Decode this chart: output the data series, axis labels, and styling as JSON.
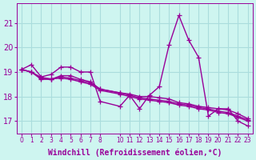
{
  "bg_color": "#cef5f0",
  "grid_color": "#aadddd",
  "line_color": "#990099",
  "xlabel": "Windchill (Refroidissement éolien,°C)",
  "xlabel_color": "#990099",
  "yticks": [
    17,
    18,
    19,
    20,
    21
  ],
  "xticks": [
    0,
    1,
    2,
    3,
    4,
    5,
    6,
    7,
    8,
    10,
    11,
    12,
    13,
    14,
    15,
    16,
    17,
    18,
    19,
    20,
    21,
    22,
    23
  ],
  "ylim": [
    16.5,
    21.8
  ],
  "xlim": [
    -0.5,
    23.5
  ],
  "series": [
    {
      "x": [
        0,
        1,
        2,
        3,
        4,
        5,
        6,
        7,
        8,
        10,
        11,
        12,
        13,
        14,
        15,
        16,
        17,
        18,
        19,
        20,
        21,
        22,
        23
      ],
      "y": [
        19.1,
        19.3,
        18.8,
        18.9,
        19.2,
        19.2,
        19.0,
        19.0,
        17.8,
        17.6,
        18.05,
        17.5,
        18.05,
        18.4,
        20.1,
        21.3,
        20.3,
        19.6,
        17.2,
        17.5,
        17.5,
        17.0,
        16.8
      ]
    },
    {
      "x": [
        0,
        1,
        2,
        3,
        4,
        5,
        6,
        7,
        8,
        10,
        11,
        12,
        13,
        14,
        15,
        16,
        17,
        18,
        19,
        20,
        21,
        22,
        23
      ],
      "y": [
        19.1,
        19.0,
        18.7,
        18.7,
        18.85,
        18.85,
        18.7,
        18.6,
        18.3,
        18.15,
        18.1,
        18.0,
        18.0,
        17.95,
        17.9,
        17.75,
        17.7,
        17.6,
        17.55,
        17.5,
        17.45,
        17.3,
        17.1
      ]
    },
    {
      "x": [
        0,
        1,
        2,
        3,
        4,
        5,
        6,
        7,
        8,
        10,
        11,
        12,
        13,
        14,
        15,
        16,
        17,
        18,
        19,
        20,
        21,
        22,
        23
      ],
      "y": [
        19.1,
        19.0,
        18.75,
        18.7,
        18.8,
        18.75,
        18.65,
        18.55,
        18.3,
        18.15,
        18.05,
        17.95,
        17.9,
        17.85,
        17.8,
        17.7,
        17.65,
        17.55,
        17.5,
        17.4,
        17.35,
        17.2,
        17.05
      ]
    },
    {
      "x": [
        0,
        1,
        2,
        3,
        4,
        5,
        6,
        7,
        8,
        10,
        11,
        12,
        13,
        14,
        15,
        16,
        17,
        18,
        19,
        20,
        21,
        22,
        23
      ],
      "y": [
        19.1,
        19.0,
        18.78,
        18.72,
        18.75,
        18.7,
        18.6,
        18.5,
        18.25,
        18.1,
        18.0,
        17.9,
        17.85,
        17.8,
        17.75,
        17.65,
        17.6,
        17.5,
        17.45,
        17.35,
        17.3,
        17.15,
        17.0
      ]
    }
  ],
  "marker": "+",
  "markersize": 5,
  "linewidth": 1.0,
  "fontsize_xlabel": 7,
  "fontsize_ytick": 7,
  "fontsize_xtick": 5.5
}
